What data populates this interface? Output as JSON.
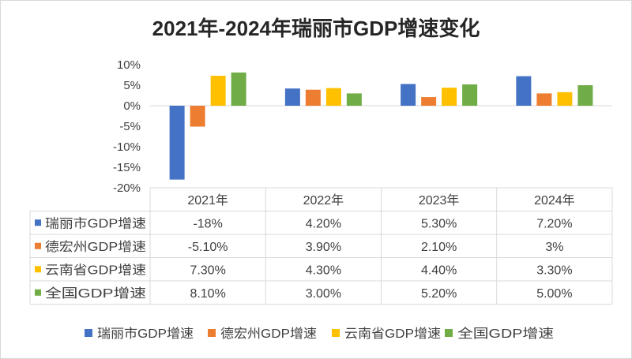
{
  "chart_data": {
    "type": "bar",
    "title": "2021年-2024年瑞丽市GDP增速变化",
    "categories": [
      "2021年",
      "2022年",
      "2023年",
      "2024年"
    ],
    "ylim": [
      -20,
      10
    ],
    "yticks": [
      "10%",
      "5%",
      "0%",
      "-5%",
      "-10%",
      "-15%",
      "-20%"
    ],
    "ytick_values": [
      10,
      5,
      0,
      -5,
      -10,
      -15,
      -20
    ],
    "xlabel": "",
    "ylabel": "",
    "grid": false,
    "legend_position": "bottom",
    "series": [
      {
        "name": "瑞丽市GDP增速",
        "color": "#4472c4",
        "values": [
          -18,
          4.2,
          5.3,
          7.2
        ],
        "labels": [
          "-18%",
          "4.20%",
          "5.30%",
          "7.20%"
        ]
      },
      {
        "name": "德宏州GDP增速",
        "color": "#ed7d31",
        "values": [
          -5.1,
          3.9,
          2.1,
          3.0
        ],
        "labels": [
          "-5.10%",
          "3.90%",
          "2.10%",
          "3%"
        ]
      },
      {
        "name": "云南省GDP增速",
        "color": "#ffc000",
        "values": [
          7.3,
          4.3,
          4.4,
          3.3
        ],
        "labels": [
          "7.30%",
          "4.30%",
          "4.40%",
          "3.30%"
        ]
      },
      {
        "name": "全国GDP增速",
        "color": "#70ad47",
        "values": [
          8.1,
          3.0,
          5.2,
          5.0
        ],
        "labels": [
          "8.10%",
          "3.00%",
          "5.20%",
          "5.00%"
        ]
      }
    ]
  }
}
